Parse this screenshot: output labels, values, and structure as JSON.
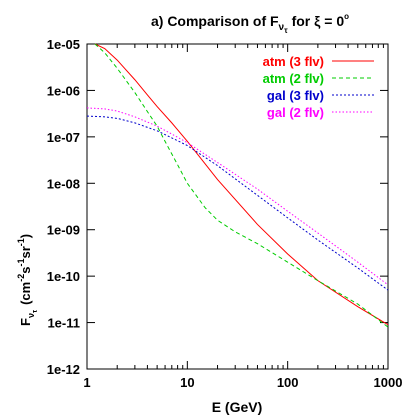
{
  "chart_data": {
    "type": "line",
    "title": {
      "prefix": "a) Comparison of F",
      "sub": "ν",
      "subsub": "τ",
      "mid": " for  ξ = 0",
      "sup": "o"
    },
    "xlabel": "E (GeV)",
    "ylabel": {
      "F": "F",
      "sub": "ν",
      "subsub": "τ",
      "units": [
        "(cm",
        "-2",
        "s",
        "-1",
        "sr",
        "-1",
        ")"
      ]
    },
    "x_scale": "log",
    "y_scale": "log",
    "xlim": [
      1,
      1000
    ],
    "ylim": [
      1e-12,
      1e-05
    ],
    "grid": false,
    "legend_position": "top-right",
    "x_ticks": [
      {
        "value": 1,
        "label": "1"
      },
      {
        "value": 10,
        "label": "10"
      },
      {
        "value": 100,
        "label": "100"
      },
      {
        "value": 1000,
        "label": "1000"
      }
    ],
    "y_ticks": [
      {
        "value": 1e-12,
        "label": "1e-12"
      },
      {
        "value": 1e-11,
        "label": "1e-11"
      },
      {
        "value": 1e-10,
        "label": "1e-10"
      },
      {
        "value": 1e-09,
        "label": "1e-09"
      },
      {
        "value": 1e-08,
        "label": "1e-08"
      },
      {
        "value": 1e-07,
        "label": "1e-07"
      },
      {
        "value": 1e-06,
        "label": "1e-06"
      },
      {
        "value": 1e-05,
        "label": "1e-05"
      }
    ],
    "series": [
      {
        "name": "atm (3 flv)",
        "color": "#ff0000",
        "dash": "none",
        "x": [
          1.2,
          1.5,
          2,
          3,
          4,
          5,
          7,
          10,
          20,
          50,
          100,
          200,
          500,
          1000
        ],
        "y": [
          1e-05,
          8e-06,
          4.5e-06,
          1.7e-06,
          8e-07,
          4.5e-07,
          2e-07,
          8e-08,
          1.2e-08,
          1.3e-09,
          3e-10,
          8e-11,
          2.2e-11,
          9e-12
        ]
      },
      {
        "name": "atm (2 flv)",
        "color": "#00cc00",
        "dash": "4,3",
        "x": [
          1.2,
          1.5,
          2,
          3,
          4,
          5,
          6,
          8,
          10,
          15,
          20,
          30,
          50,
          100,
          200,
          500,
          1000
        ],
        "y": [
          1e-05,
          6.5e-06,
          3e-06,
          9e-07,
          3.5e-07,
          1.7e-07,
          8e-08,
          2.5e-08,
          1e-08,
          3e-09,
          1.6e-09,
          9e-10,
          5e-10,
          2e-10,
          8e-11,
          2.5e-11,
          8e-12
        ]
      },
      {
        "name": "gal (3 flv)",
        "color": "#0000cc",
        "dash": "2,2",
        "x": [
          1,
          1.5,
          2,
          3,
          5,
          7,
          10,
          20,
          50,
          100,
          200,
          500,
          1000
        ],
        "y": [
          2.8e-07,
          2.7e-07,
          2.5e-07,
          2e-07,
          1.35e-07,
          9.5e-08,
          6.5e-08,
          2.4e-08,
          5.5e-09,
          1.8e-09,
          6e-10,
          1.5e-10,
          5e-11
        ]
      },
      {
        "name": "gal (2 flv)",
        "color": "#ff00ff",
        "dash": "1.5,2",
        "x": [
          1,
          1.5,
          2,
          3,
          5,
          7,
          10,
          20,
          50,
          100,
          200,
          500,
          1000
        ],
        "y": [
          4.2e-07,
          4e-07,
          3.6e-07,
          2.7e-07,
          1.7e-07,
          1.15e-07,
          7.5e-08,
          2.8e-08,
          7.5e-09,
          2.5e-09,
          8.5e-10,
          2e-10,
          6.5e-11
        ]
      }
    ]
  }
}
